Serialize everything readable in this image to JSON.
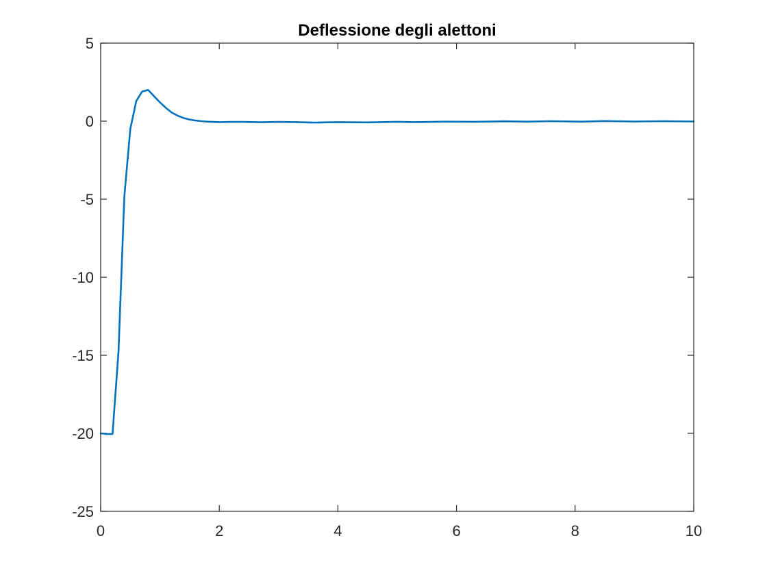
{
  "chart_data": {
    "type": "line",
    "title": "Deflessione degli alettoni",
    "xlabel": "",
    "ylabel": "",
    "xlim": [
      0,
      10
    ],
    "ylim": [
      -25,
      5
    ],
    "x_ticks": [
      0,
      2,
      4,
      6,
      8,
      10
    ],
    "y_ticks": [
      -25,
      -20,
      -15,
      -10,
      -5,
      0,
      5
    ],
    "x_tick_labels": [
      "0",
      "2",
      "4",
      "6",
      "8",
      "10"
    ],
    "y_tick_labels": [
      "-25",
      "-20",
      "-15",
      "-10",
      "-5",
      "0",
      "5"
    ],
    "grid": false,
    "series": [
      {
        "color": "#0072BD",
        "x": [
          0,
          0.1,
          0.2,
          0.3,
          0.4,
          0.5,
          0.6,
          0.7,
          0.8,
          0.9,
          1.0,
          1.1,
          1.2,
          1.3,
          1.4,
          1.5,
          1.6,
          1.7,
          1.8,
          2.0,
          2.2,
          2.4,
          2.7,
          3.0,
          3.3,
          3.6,
          4.0,
          4.5,
          5.0,
          5.3,
          5.8,
          6.3,
          6.8,
          7.2,
          7.6,
          8.1,
          8.5,
          9.0,
          9.5,
          10.0
        ],
        "y": [
          -20,
          -20.05,
          -20.05,
          -14.8,
          -4.8,
          -0.5,
          1.3,
          1.9,
          2.0,
          1.6,
          1.2,
          0.85,
          0.55,
          0.35,
          0.2,
          0.1,
          0.04,
          0.0,
          -0.03,
          -0.06,
          -0.05,
          -0.05,
          -0.07,
          -0.05,
          -0.06,
          -0.09,
          -0.06,
          -0.08,
          -0.04,
          -0.06,
          -0.03,
          -0.04,
          -0.01,
          -0.03,
          0.0,
          -0.03,
          0.01,
          -0.02,
          0.0,
          -0.02
        ]
      }
    ]
  }
}
